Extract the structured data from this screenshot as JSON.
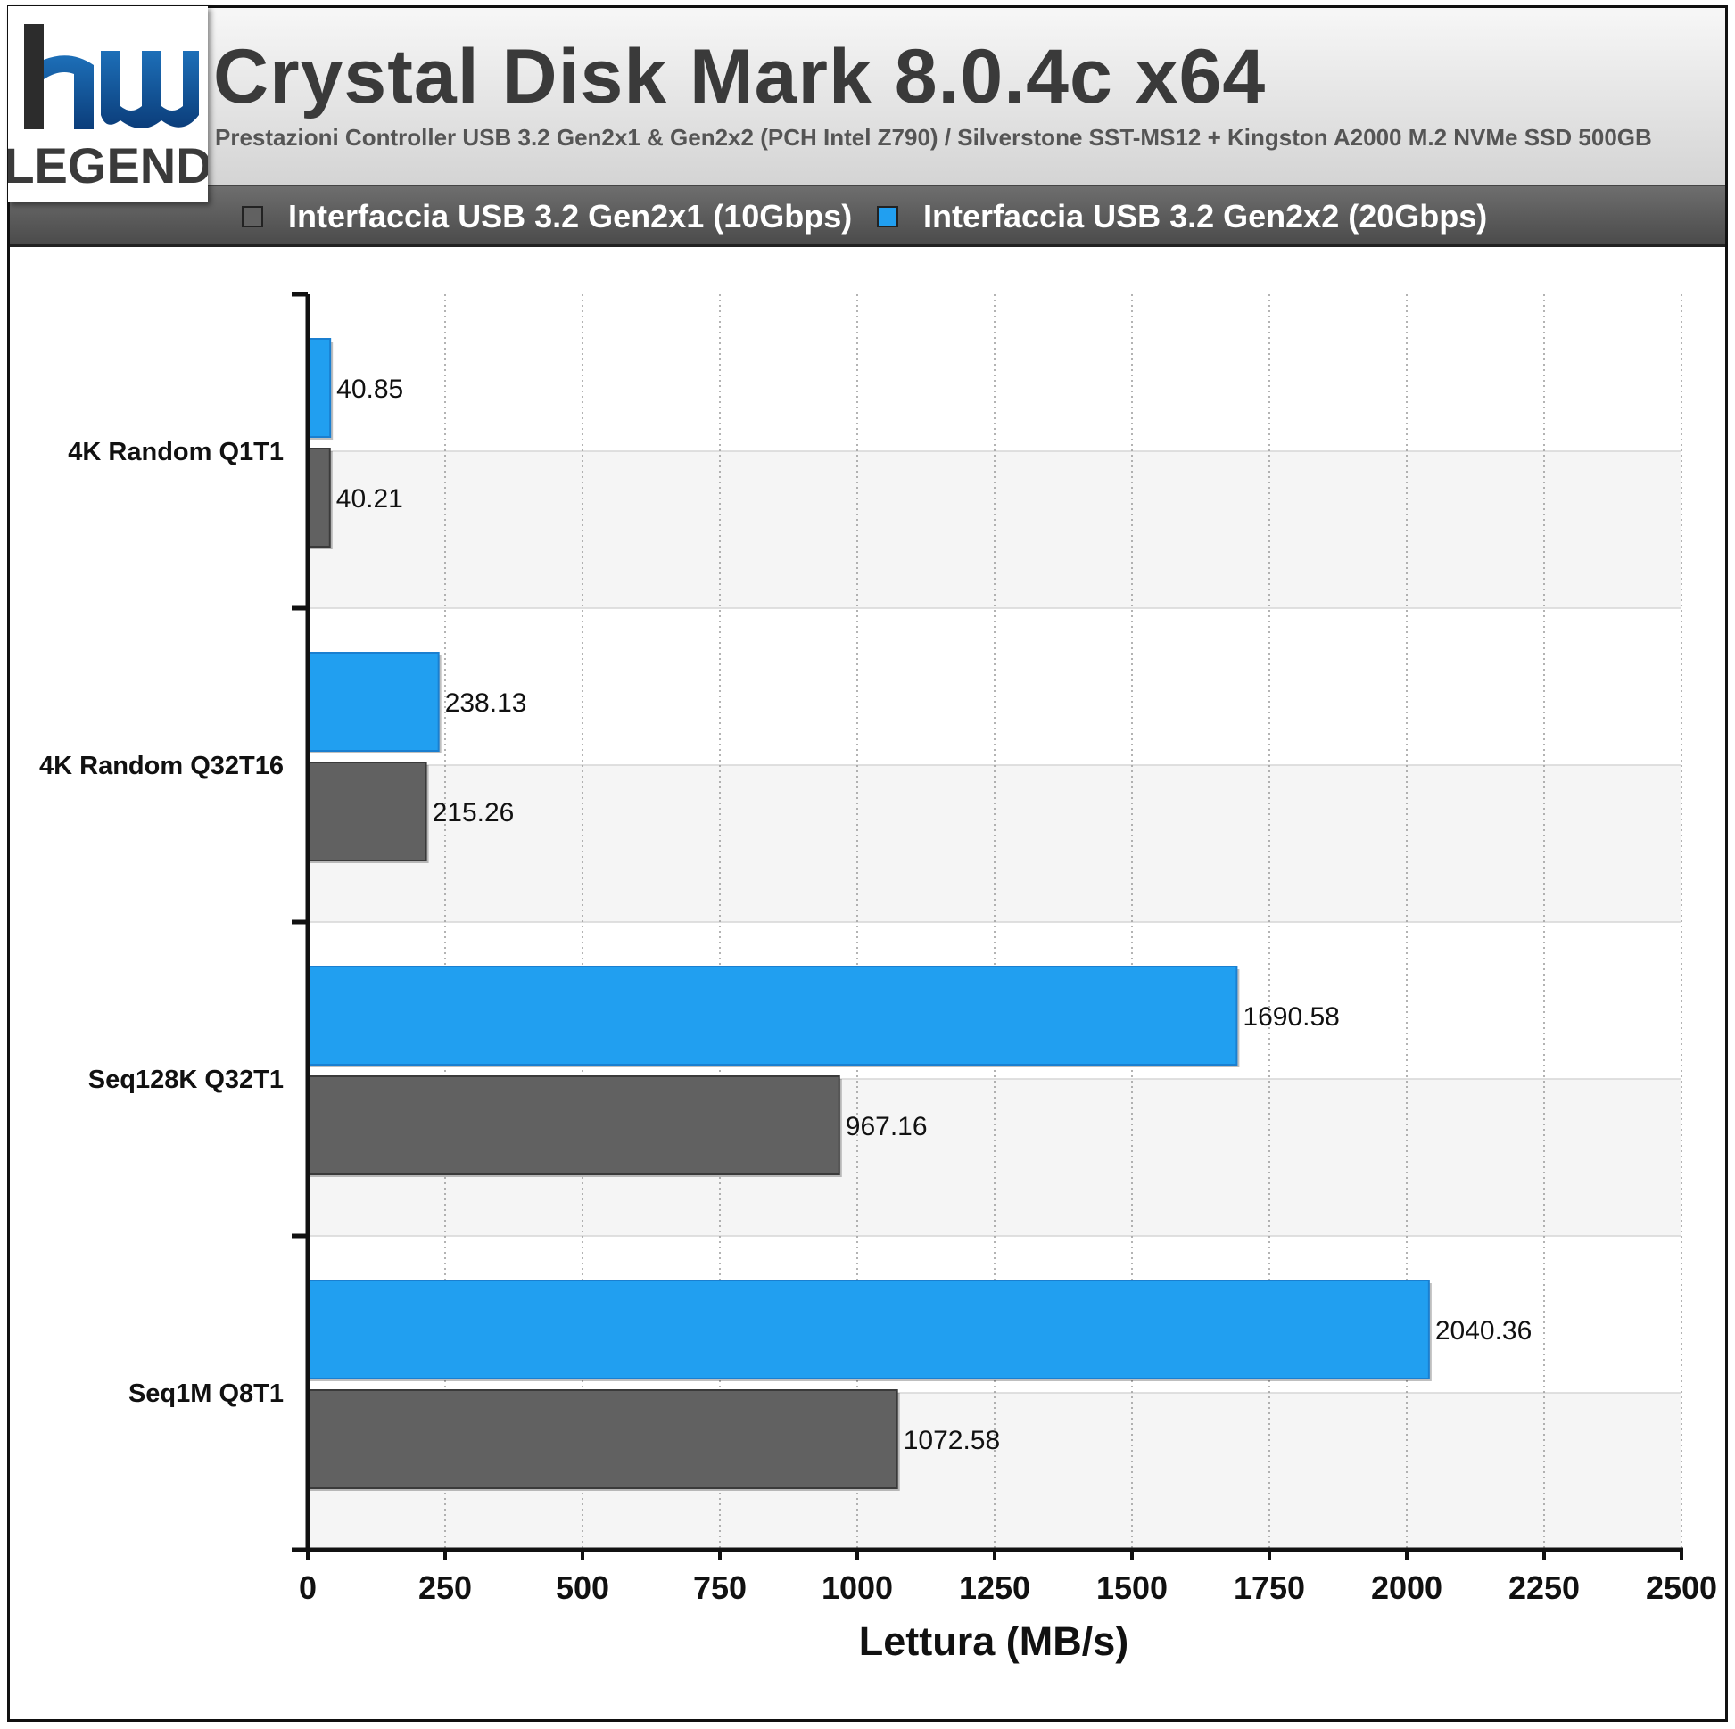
{
  "header": {
    "logo_text": "LEGEND",
    "title": "Crystal Disk Mark 8.0.4c x64",
    "subtitle": "Prestazioni Controller USB 3.2 Gen2x1 & Gen2x2 (PCH Intel Z790) / Silverstone SST-MS12 + Kingston A2000 M.2 NVMe SSD 500GB"
  },
  "colors": {
    "series_gen2x1": "#616161",
    "series_gen2x2": "#219ff0",
    "band_alt": "#f5f5f5",
    "grid": "#9a9a9a"
  },
  "chart_data": {
    "type": "bar",
    "orientation": "horizontal",
    "categories": [
      "4K Random Q1T1",
      "4K Random Q32T16",
      "Seq128K Q32T1",
      "Seq1M Q8T1"
    ],
    "series": [
      {
        "name": "Interfaccia USB 3.2 Gen2x1 (10Gbps)",
        "values": [
          40.21,
          215.26,
          967.16,
          1072.58
        ]
      },
      {
        "name": "Interfaccia USB 3.2 Gen2x2 (20Gbps)",
        "values": [
          40.85,
          238.13,
          1690.58,
          2040.36
        ]
      }
    ],
    "value_labels": {
      "gen2x1": [
        "40.21",
        "215.26",
        "967.16",
        "1072.58"
      ],
      "gen2x2": [
        "40.85",
        "238.13",
        "1690.58",
        "2040.36"
      ]
    },
    "xlabel": "Lettura (MB/s)",
    "ylabel": "",
    "xlim": [
      0,
      2500
    ],
    "xticks": [
      0,
      250,
      500,
      750,
      1000,
      1250,
      1500,
      1750,
      2000,
      2250,
      2500
    ],
    "xtick_labels": [
      "0",
      "250",
      "500",
      "750",
      "1000",
      "1250",
      "1500",
      "1750",
      "2000",
      "2250",
      "2500"
    ],
    "grid": true,
    "legend_position": "top"
  }
}
